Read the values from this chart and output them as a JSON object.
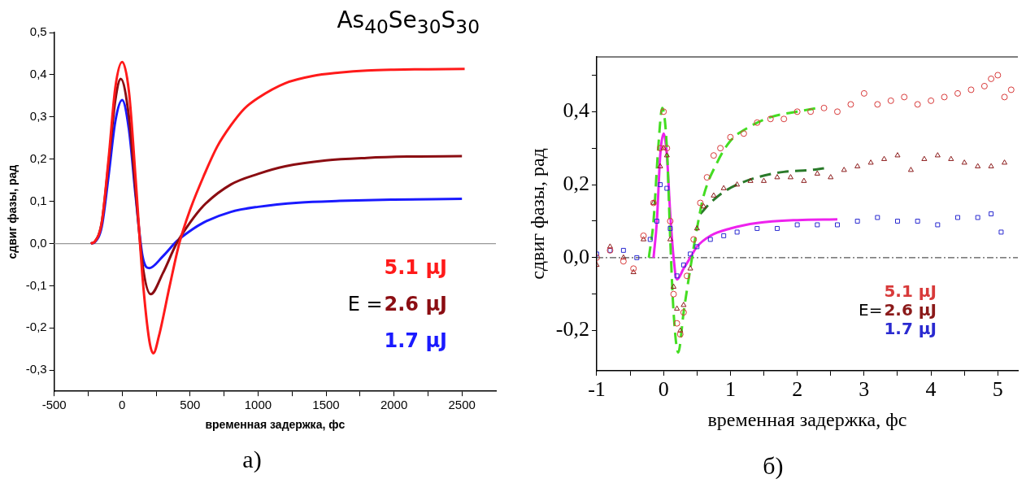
{
  "chart_data": [
    {
      "type": "line",
      "title": "As$_{40}$Se$_{30}$S$_{30}$",
      "xlabel": "временная задержка, фс",
      "ylabel": "сдвиг фазы, рад",
      "legend": "bottom right",
      "legend_title": "E =",
      "grid": false,
      "xlim": [
        -500,
        2750
      ],
      "xticks": [
        -500,
        {
          "value": -250,
          "label": null
        },
        0,
        {
          "value": 250,
          "label": null
        },
        500,
        {
          "value": 750,
          "label": null
        },
        1000,
        {
          "value": 1250,
          "label": null
        },
        1500,
        {
          "value": 1750,
          "label": null
        },
        2000,
        {
          "value": 2250,
          "label": null
        },
        2500
      ],
      "ylim": [
        -0.35,
        0.5
      ],
      "yticks": [
        {
          "value": -0.3,
          "label": "-0,3"
        },
        {
          "value": -0.2,
          "label": "-0,2"
        },
        {
          "value": -0.1,
          "label": "-0,1"
        },
        {
          "value": 0,
          "label": "0,0"
        },
        {
          "value": 0.1,
          "label": "0,1"
        },
        {
          "value": 0.2,
          "label": "0,2"
        },
        {
          "value": 0.3,
          "label": "0,3"
        },
        {
          "value": 0.4,
          "label": "0,4"
        },
        {
          "value": 0.5,
          "label": "0,5"
        }
      ],
      "ref_lines": [
        {
          "axis": "y",
          "value": 0,
          "color": "#999999",
          "line_style": "solid"
        }
      ],
      "annotations": [
        "а)"
      ],
      "series": [
        {
          "name": "5.1 μJ",
          "color": "#ff1a1a",
          "x": [
            -230,
            -200,
            -150,
            -100,
            -50,
            0,
            50,
            100,
            150,
            200,
            230,
            270,
            350,
            420,
            500,
            600,
            700,
            800,
            900,
            1000,
            1200,
            1400,
            1600,
            1800,
            2000,
            2250,
            2520
          ],
          "values": [
            0,
            0.005,
            0.05,
            0.2,
            0.37,
            0.43,
            0.36,
            0.15,
            -0.08,
            -0.23,
            -0.26,
            -0.22,
            -0.1,
            0,
            0.08,
            0.16,
            0.23,
            0.28,
            0.32,
            0.345,
            0.38,
            0.397,
            0.405,
            0.41,
            0.412,
            0.413,
            0.414
          ]
        },
        {
          "name": "2.6 μJ",
          "color": "#8b0d12",
          "x": [
            -230,
            -200,
            -150,
            -100,
            -50,
            -10,
            50,
            100,
            150,
            210,
            300,
            400,
            500,
            600,
            800,
            1000,
            1200,
            1500,
            1800,
            2100,
            2500
          ],
          "values": [
            0,
            0.005,
            0.05,
            0.19,
            0.34,
            0.39,
            0.3,
            0.12,
            -0.05,
            -0.12,
            -0.07,
            0,
            0.05,
            0.09,
            0.14,
            0.165,
            0.183,
            0.197,
            0.203,
            0.206,
            0.207
          ]
        },
        {
          "name": "1.7 μJ",
          "color": "#1a1aff",
          "x": [
            -230,
            -200,
            -150,
            -100,
            -50,
            0,
            50,
            100,
            150,
            200,
            300,
            400,
            500,
            600,
            800,
            1000,
            1300,
            1600,
            2000,
            2500
          ],
          "values": [
            0,
            0.004,
            0.04,
            0.16,
            0.29,
            0.34,
            0.27,
            0.11,
            -0.03,
            -0.058,
            -0.03,
            0.005,
            0.03,
            0.05,
            0.075,
            0.087,
            0.097,
            0.101,
            0.104,
            0.106
          ]
        }
      ]
    },
    {
      "type": "scatter",
      "xlabel": "временная задержка, фс",
      "ylabel": "сдвиг фазы, рад",
      "legend": "bottom right",
      "legend_title": "E=",
      "grid": false,
      "xlim": [
        -1,
        5.3
      ],
      "xticks": [
        -1,
        {
          "value": -0.5,
          "label": null
        },
        0,
        {
          "value": 0.5,
          "label": null
        },
        1,
        {
          "value": 1.5,
          "label": null
        },
        2,
        {
          "value": 2.5,
          "label": null
        },
        3,
        {
          "value": 3.5,
          "label": null
        },
        4,
        {
          "value": 4.5,
          "label": null
        },
        5
      ],
      "ylim": [
        -0.31,
        0.55
      ],
      "yticks": [
        {
          "value": -0.2,
          "label": "-0,2"
        },
        {
          "value": -0.1,
          "label": null
        },
        {
          "value": 0,
          "label": "0,0"
        },
        {
          "value": 0.1,
          "label": null
        },
        {
          "value": 0.2,
          "label": "0,2"
        },
        {
          "value": 0.3,
          "label": null
        },
        {
          "value": 0.4,
          "label": "0,4"
        },
        {
          "value": 0.5,
          "label": null
        }
      ],
      "ref_lines": [
        {
          "axis": "y",
          "value": 0,
          "color": "#555555",
          "line_style": "dashed"
        }
      ],
      "annotations": [
        "б)"
      ],
      "series": [
        {
          "name": "5.1 μJ",
          "color": "#d83a3a",
          "marker": "circle",
          "x": [
            -1,
            -0.8,
            -0.6,
            -0.45,
            -0.3,
            -0.15,
            -0.05,
            0,
            0.05,
            0.1,
            0.15,
            0.2,
            0.25,
            0.3,
            0.35,
            0.45,
            0.55,
            0.65,
            0.75,
            0.85,
            1,
            1.2,
            1.4,
            1.6,
            1.8,
            2,
            2.2,
            2.4,
            2.6,
            2.8,
            3,
            3.2,
            3.4,
            3.6,
            3.8,
            4,
            4.2,
            4.4,
            4.6,
            4.8,
            4.9,
            5,
            5.1,
            5.2
          ],
          "values": [
            0,
            0.02,
            -0.01,
            -0.03,
            0.06,
            0.15,
            0.3,
            0.4,
            0.3,
            0.1,
            -0.1,
            -0.18,
            -0.21,
            -0.15,
            -0.05,
            0.05,
            0.15,
            0.22,
            0.28,
            0.3,
            0.33,
            0.34,
            0.37,
            0.38,
            0.38,
            0.4,
            0.4,
            0.41,
            0.4,
            0.42,
            0.45,
            0.42,
            0.43,
            0.44,
            0.42,
            0.43,
            0.44,
            0.45,
            0.46,
            0.47,
            0.49,
            0.5,
            0.44,
            0.46
          ]
        },
        {
          "name": "2.6 μJ",
          "color": "#8b1a1a",
          "marker": "triangle",
          "x": [
            -1,
            -0.8,
            -0.6,
            -0.45,
            -0.3,
            -0.15,
            -0.05,
            0,
            0.05,
            0.1,
            0.15,
            0.2,
            0.25,
            0.3,
            0.4,
            0.5,
            0.6,
            0.75,
            0.9,
            1.1,
            1.3,
            1.5,
            1.7,
            1.9,
            2.1,
            2.3,
            2.5,
            2.7,
            2.9,
            3.1,
            3.3,
            3.5,
            3.7,
            3.9,
            4.1,
            4.3,
            4.5,
            4.7,
            4.9,
            5.1
          ],
          "values": [
            -0.02,
            0.03,
            0,
            -0.04,
            0.05,
            0.15,
            0.25,
            0.3,
            0.28,
            0.05,
            -0.08,
            -0.14,
            -0.2,
            -0.13,
            -0.03,
            0.08,
            0.14,
            0.17,
            0.19,
            0.2,
            0.21,
            0.21,
            0.22,
            0.22,
            0.21,
            0.23,
            0.22,
            0.24,
            0.25,
            0.26,
            0.27,
            0.28,
            0.24,
            0.27,
            0.28,
            0.27,
            0.26,
            0.25,
            0.25,
            0.26
          ]
        },
        {
          "name": "1.7 μJ",
          "color": "#2a2ad0",
          "marker": "square",
          "x": [
            -1,
            -0.8,
            -0.6,
            -0.4,
            -0.2,
            -0.1,
            -0.05,
            0.05,
            0.1,
            0.2,
            0.3,
            0.4,
            0.5,
            0.7,
            0.9,
            1.1,
            1.4,
            1.7,
            2,
            2.3,
            2.6,
            2.9,
            3.2,
            3.5,
            3.8,
            4.1,
            4.4,
            4.7,
            4.9,
            5.05
          ],
          "values": [
            0.01,
            0.02,
            0.02,
            0,
            0.05,
            0.1,
            0.2,
            0.19,
            0.08,
            -0.05,
            -0.02,
            0.01,
            0.03,
            0.05,
            0.06,
            0.07,
            0.08,
            0.08,
            0.09,
            0.09,
            0.09,
            0.1,
            0.11,
            0.1,
            0.1,
            0.09,
            0.11,
            0.11,
            0.12,
            0.07
          ]
        },
        {
          "color": "#44dd22",
          "type": "line",
          "line_style": "dashed",
          "x": [
            -0.22,
            -0.15,
            -0.08,
            -0.02,
            0.05,
            0.1,
            0.15,
            0.22,
            0.3,
            0.4,
            0.5,
            0.6,
            0.8,
            1,
            1.3,
            1.6,
            2,
            2.3
          ],
          "values": [
            0,
            0.1,
            0.3,
            0.41,
            0.3,
            0.05,
            -0.15,
            -0.26,
            -0.15,
            -0.03,
            0.08,
            0.17,
            0.26,
            0.32,
            0.36,
            0.385,
            0.4,
            0.41
          ]
        },
        {
          "color": "#2a7a2a",
          "type": "line",
          "line_style": "dashed",
          "x": [
            0.55,
            0.7,
            0.9,
            1.1,
            1.4,
            1.8,
            2.2,
            2.4
          ],
          "values": [
            0.12,
            0.15,
            0.18,
            0.2,
            0.22,
            0.235,
            0.24,
            0.245
          ]
        },
        {
          "color": "#ee22ee",
          "type": "line",
          "line_style": "solid",
          "x": [
            -0.15,
            -0.1,
            -0.05,
            0,
            0.05,
            0.1,
            0.15,
            0.2,
            0.3,
            0.4,
            0.5,
            0.7,
            1,
            1.4,
            2,
            2.6
          ],
          "values": [
            0,
            0.1,
            0.28,
            0.34,
            0.28,
            0.12,
            0,
            -0.06,
            -0.03,
            0,
            0.03,
            0.06,
            0.08,
            0.095,
            0.103,
            0.105
          ]
        }
      ]
    }
  ]
}
